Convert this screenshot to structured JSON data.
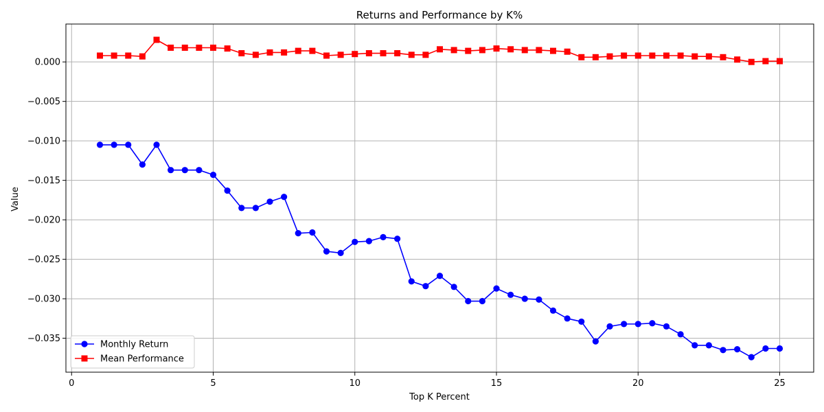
{
  "chart_data": {
    "type": "line",
    "title": "Returns and Performance by K%",
    "xlabel": "Top K Percent",
    "ylabel": "Value",
    "xlim": [
      -0.2,
      26.2
    ],
    "ylim": [
      -0.0393,
      0.0048
    ],
    "x_ticks": [
      0,
      5,
      10,
      15,
      20,
      25
    ],
    "x_tick_labels": [
      "0",
      "5",
      "10",
      "15",
      "20",
      "25"
    ],
    "y_ticks": [
      0.0,
      -0.005,
      -0.01,
      -0.015,
      -0.02,
      -0.025,
      -0.03,
      -0.035
    ],
    "y_tick_labels": [
      "0.000",
      "−0.005",
      "−0.010",
      "−0.015",
      "−0.020",
      "−0.025",
      "−0.030",
      "−0.035"
    ],
    "grid": true,
    "legend_position": "lower-left",
    "x": [
      1,
      1.5,
      2,
      2.5,
      3,
      3.5,
      4,
      4.5,
      5,
      5.5,
      6,
      6.5,
      7,
      7.5,
      8,
      8.5,
      9,
      9.5,
      10,
      10.5,
      11,
      11.5,
      12,
      12.5,
      13,
      13.5,
      14,
      14.5,
      15,
      15.5,
      16,
      16.5,
      17,
      17.5,
      18,
      18.5,
      19,
      19.5,
      20,
      20.5,
      21,
      21.5,
      22,
      22.5,
      23,
      23.5,
      24,
      24.5,
      25
    ],
    "series": [
      {
        "name": "Monthly Return",
        "color": "#0000ff",
        "marker": "circle",
        "values": [
          -0.0105,
          -0.0105,
          -0.0105,
          -0.013,
          -0.0105,
          -0.0137,
          -0.0137,
          -0.0137,
          -0.0143,
          -0.0163,
          -0.0185,
          -0.0185,
          -0.0177,
          -0.0171,
          -0.0217,
          -0.0216,
          -0.024,
          -0.0242,
          -0.0228,
          -0.0227,
          -0.0222,
          -0.0224,
          -0.0278,
          -0.0284,
          -0.0271,
          -0.0285,
          -0.0303,
          -0.0303,
          -0.0287,
          -0.0295,
          -0.03,
          -0.0301,
          -0.0315,
          -0.0325,
          -0.0329,
          -0.0354,
          -0.0335,
          -0.0332,
          -0.0332,
          -0.0331,
          -0.0335,
          -0.0345,
          -0.0359,
          -0.0359,
          -0.0365,
          -0.0364,
          -0.0374,
          -0.0363,
          -0.0363
        ]
      },
      {
        "name": "Mean Performance",
        "color": "#ff0000",
        "marker": "square",
        "values": [
          0.0008,
          0.0008,
          0.0008,
          0.0007,
          0.0028,
          0.0018,
          0.0018,
          0.0018,
          0.0018,
          0.0017,
          0.0011,
          0.0009,
          0.0012,
          0.0012,
          0.0014,
          0.0014,
          0.0008,
          0.0009,
          0.001,
          0.0011,
          0.0011,
          0.0011,
          0.0009,
          0.0009,
          0.0016,
          0.0015,
          0.0014,
          0.0015,
          0.0017,
          0.0016,
          0.0015,
          0.0015,
          0.0014,
          0.0013,
          0.0006,
          0.0006,
          0.0007,
          0.0008,
          0.0008,
          0.0008,
          0.0008,
          0.0008,
          0.0007,
          0.0007,
          0.0006,
          0.0003,
          0.0,
          0.0001,
          0.0001
        ]
      }
    ]
  }
}
